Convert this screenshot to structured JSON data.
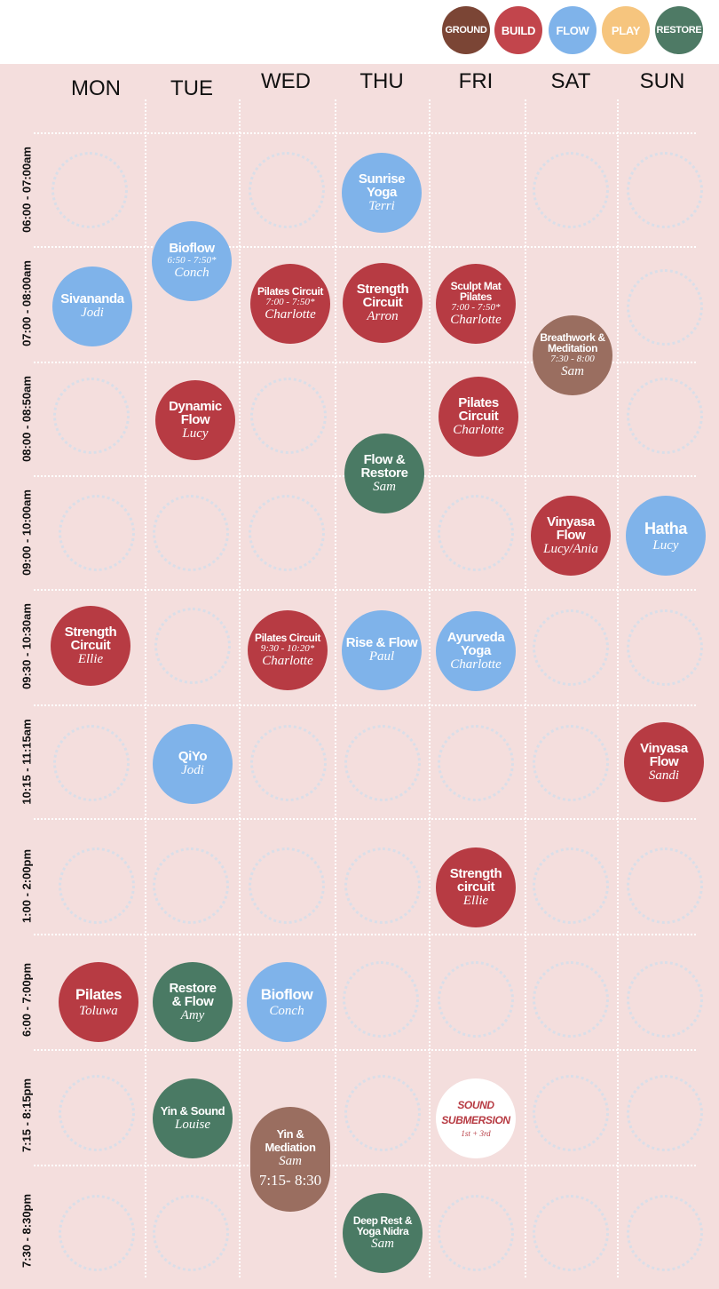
{
  "legend": [
    {
      "label": "GROUND",
      "color": "#7b4535"
    },
    {
      "label": "BUILD",
      "color": "#c2454c"
    },
    {
      "label": "FLOW",
      "color": "#7fb3ea"
    },
    {
      "label": "PLAY",
      "color": "#f6c57e"
    },
    {
      "label": "RESTORE",
      "color": "#4e7a65"
    }
  ],
  "days": [
    "MON",
    "TUE",
    "WED",
    "THU",
    "FRI",
    "SAT",
    "SUN"
  ],
  "times": [
    "06:00 - 07:00am",
    "07:00 - 08:00am",
    "08:00 - 08:50am",
    "09:00 - 10:00am",
    "09:30 - 10:30am",
    "10:15 - 11:15am",
    "1:00 - 2:00pm",
    "6:00 - 7:00pm",
    "7:15 - 8:15pm",
    "7:30 - 8:30pm"
  ],
  "classes": {
    "thu_sunrise": {
      "name": "Sunrise Yoga",
      "instructor": "Terri"
    },
    "tue_bioflow": {
      "name": "Bioflow",
      "time": "6:50 - 7:50*",
      "instructor": "Conch"
    },
    "mon_sivananda": {
      "name": "Sivananda",
      "instructor": "Jodi"
    },
    "wed_pilates": {
      "name": "Pilates Circuit",
      "time": "7:00 - 7:50*",
      "instructor": "Charlotte"
    },
    "thu_strength": {
      "name": "Strength Circuit",
      "instructor": "Arron"
    },
    "fri_sculpt": {
      "name": "Sculpt Mat Pilates",
      "time": "7:00 - 7:50*",
      "instructor": "Charlotte"
    },
    "sat_breathwork": {
      "name": "Breathwork & Meditation",
      "time": "7:30 - 8:00",
      "instructor": "Sam"
    },
    "tue_dynamic": {
      "name": "Dynamic Flow",
      "instructor": "Lucy"
    },
    "fri_pilates": {
      "name": "Pilates Circuit",
      "instructor": "Charlotte"
    },
    "thu_flowrestore": {
      "name": "Flow & Restore",
      "instructor": "Sam"
    },
    "sat_vinyasa": {
      "name": "Vinyasa Flow",
      "instructor": "Lucy/Ania"
    },
    "sun_hatha": {
      "name": "Hatha",
      "instructor": "Lucy"
    },
    "mon_strength": {
      "name": "Strength Circuit",
      "instructor": "Ellie"
    },
    "wed_pilates2": {
      "name": "Pilates Circuit",
      "time": "9:30 - 10:20*",
      "instructor": "Charlotte"
    },
    "thu_rise": {
      "name": "Rise & Flow",
      "instructor": "Paul"
    },
    "fri_ayurveda": {
      "name": "Ayurveda Yoga",
      "instructor": "Charlotte"
    },
    "tue_qiyo": {
      "name": "QiYo",
      "instructor": "Jodi"
    },
    "sun_vinyasa": {
      "name": "Vinyasa Flow",
      "instructor": "Sandi"
    },
    "fri_strength": {
      "name": "Strength circuit",
      "instructor": "Ellie"
    },
    "mon_pilates": {
      "name": "Pilates",
      "instructor": "Toluwa"
    },
    "tue_restore": {
      "name": "Restore & Flow",
      "instructor": "Amy"
    },
    "wed_bioflow": {
      "name": "Bioflow",
      "instructor": "Conch"
    },
    "tue_yin": {
      "name": "Yin & Sound",
      "instructor": "Louise"
    },
    "fri_sound": {
      "name": "SOUND SUBMERSION",
      "time": "1st + 3rd"
    },
    "wed_yin": {
      "name": "Yin & Mediation",
      "instructor": "Sam",
      "time": "7:15- 8:30"
    },
    "thu_deeprest": {
      "name": "Deep Rest & Yoga Nidra",
      "instructor": "Sam"
    }
  }
}
